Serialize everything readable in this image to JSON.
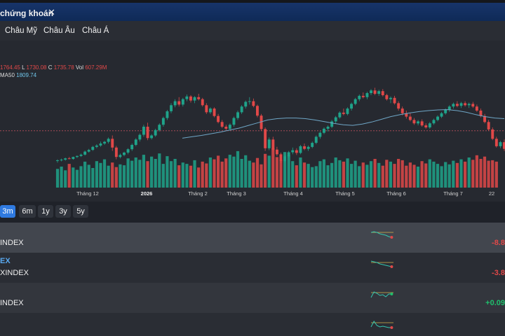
{
  "window": {
    "tab_title": "chứng khoán",
    "close_glyph": "✕"
  },
  "region_tabs": [
    "Châu Mỹ",
    "Châu Âu",
    "Châu Á"
  ],
  "legend": {
    "ohlc_head": "1764.45",
    "low_label": "L",
    "low": "1730.08",
    "close_label": "C",
    "close": "1735.78",
    "vol_label": "Vol",
    "vol": "607.29M",
    "ma_label": "MA50",
    "ma": "1809.74"
  },
  "chart_data": {
    "type": "candlestick",
    "x_tick_labels": [
      "Tháng 12",
      "2026",
      "Tháng 2",
      "Tháng 3",
      "Tháng 4",
      "Tháng 5",
      "Tháng 6",
      "Tháng 7",
      "22"
    ],
    "ylim": [
      1700,
      1950
    ],
    "reference_line": 1790,
    "candles": [
      [
        1700,
        1705,
        1695,
        1702
      ],
      [
        1702,
        1707,
        1699,
        1704
      ],
      [
        1704,
        1710,
        1701,
        1708
      ],
      [
        1708,
        1712,
        1705,
        1706
      ],
      [
        1706,
        1713,
        1704,
        1712
      ],
      [
        1712,
        1716,
        1709,
        1715
      ],
      [
        1715,
        1722,
        1712,
        1719
      ],
      [
        1719,
        1731,
        1716,
        1728
      ],
      [
        1728,
        1736,
        1725,
        1733
      ],
      [
        1733,
        1745,
        1730,
        1742
      ],
      [
        1742,
        1750,
        1738,
        1746
      ],
      [
        1746,
        1758,
        1742,
        1752
      ],
      [
        1752,
        1760,
        1748,
        1757
      ],
      [
        1757,
        1770,
        1752,
        1766
      ],
      [
        1766,
        1776,
        1730,
        1740
      ],
      [
        1740,
        1745,
        1705,
        1712
      ],
      [
        1712,
        1722,
        1708,
        1718
      ],
      [
        1718,
        1728,
        1714,
        1725
      ],
      [
        1725,
        1738,
        1720,
        1735
      ],
      [
        1735,
        1752,
        1730,
        1748
      ],
      [
        1748,
        1768,
        1744,
        1764
      ],
      [
        1764,
        1782,
        1758,
        1778
      ],
      [
        1778,
        1808,
        1772,
        1802
      ],
      [
        1802,
        1814,
        1762,
        1768
      ],
      [
        1768,
        1780,
        1764,
        1776
      ],
      [
        1776,
        1796,
        1772,
        1792
      ],
      [
        1792,
        1812,
        1788,
        1808
      ],
      [
        1808,
        1832,
        1802,
        1828
      ],
      [
        1828,
        1852,
        1822,
        1848
      ],
      [
        1848,
        1872,
        1842,
        1866
      ],
      [
        1866,
        1884,
        1860,
        1878
      ],
      [
        1878,
        1890,
        1862,
        1868
      ],
      [
        1868,
        1888,
        1862,
        1884
      ],
      [
        1884,
        1898,
        1878,
        1892
      ],
      [
        1892,
        1896,
        1874,
        1880
      ],
      [
        1880,
        1893,
        1872,
        1890
      ],
      [
        1890,
        1900,
        1880,
        1884
      ],
      [
        1884,
        1888,
        1862,
        1866
      ],
      [
        1866,
        1872,
        1840,
        1845
      ],
      [
        1845,
        1860,
        1840,
        1856
      ],
      [
        1856,
        1860,
        1830,
        1834
      ],
      [
        1834,
        1840,
        1812,
        1816
      ],
      [
        1816,
        1822,
        1798,
        1802
      ],
      [
        1802,
        1808,
        1790,
        1796
      ],
      [
        1796,
        1812,
        1790,
        1808
      ],
      [
        1808,
        1832,
        1802,
        1828
      ],
      [
        1828,
        1850,
        1822,
        1845
      ],
      [
        1845,
        1866,
        1840,
        1862
      ],
      [
        1862,
        1880,
        1856,
        1876
      ],
      [
        1876,
        1890,
        1868,
        1878
      ],
      [
        1878,
        1886,
        1860,
        1864
      ],
      [
        1864,
        1868,
        1830,
        1835
      ],
      [
        1835,
        1840,
        1790,
        1795
      ],
      [
        1795,
        1800,
        1730,
        1738
      ],
      [
        1738,
        1770,
        1732,
        1764
      ],
      [
        1764,
        1772,
        1728,
        1734
      ],
      [
        1734,
        1742,
        1715,
        1720
      ],
      [
        1720,
        1725,
        1694,
        1700
      ],
      [
        1700,
        1718,
        1696,
        1714
      ],
      [
        1714,
        1730,
        1710,
        1726
      ],
      [
        1726,
        1740,
        1720,
        1732
      ],
      [
        1732,
        1738,
        1718,
        1724
      ],
      [
        1724,
        1748,
        1720,
        1744
      ],
      [
        1744,
        1752,
        1732,
        1736
      ],
      [
        1736,
        1746,
        1730,
        1742
      ],
      [
        1742,
        1758,
        1738,
        1754
      ],
      [
        1754,
        1776,
        1750,
        1772
      ],
      [
        1772,
        1788,
        1766,
        1784
      ],
      [
        1784,
        1800,
        1780,
        1796
      ],
      [
        1796,
        1806,
        1788,
        1802
      ],
      [
        1802,
        1822,
        1798,
        1818
      ],
      [
        1818,
        1834,
        1812,
        1830
      ],
      [
        1830,
        1848,
        1826,
        1844
      ],
      [
        1844,
        1856,
        1836,
        1840
      ],
      [
        1840,
        1860,
        1836,
        1856
      ],
      [
        1856,
        1874,
        1850,
        1870
      ],
      [
        1870,
        1888,
        1866,
        1884
      ],
      [
        1884,
        1898,
        1878,
        1894
      ],
      [
        1894,
        1904,
        1886,
        1890
      ],
      [
        1890,
        1906,
        1884,
        1902
      ],
      [
        1902,
        1914,
        1896,
        1910
      ],
      [
        1910,
        1918,
        1896,
        1900
      ],
      [
        1900,
        1912,
        1894,
        1908
      ],
      [
        1908,
        1914,
        1892,
        1896
      ],
      [
        1896,
        1900,
        1880,
        1884
      ],
      [
        1884,
        1892,
        1872,
        1888
      ],
      [
        1888,
        1894,
        1868,
        1872
      ],
      [
        1872,
        1878,
        1850,
        1856
      ],
      [
        1856,
        1862,
        1836,
        1842
      ],
      [
        1842,
        1850,
        1826,
        1832
      ],
      [
        1832,
        1842,
        1818,
        1822
      ],
      [
        1822,
        1828,
        1808,
        1812
      ],
      [
        1812,
        1822,
        1806,
        1818
      ],
      [
        1818,
        1824,
        1802,
        1806
      ],
      [
        1806,
        1812,
        1796,
        1800
      ],
      [
        1800,
        1816,
        1796,
        1812
      ],
      [
        1812,
        1826,
        1808,
        1822
      ],
      [
        1822,
        1836,
        1818,
        1832
      ],
      [
        1832,
        1846,
        1828,
        1842
      ],
      [
        1842,
        1856,
        1838,
        1852
      ],
      [
        1852,
        1866,
        1846,
        1862
      ],
      [
        1862,
        1874,
        1856,
        1870
      ],
      [
        1870,
        1878,
        1860,
        1864
      ],
      [
        1864,
        1876,
        1858,
        1872
      ],
      [
        1872,
        1878,
        1862,
        1866
      ],
      [
        1866,
        1874,
        1858,
        1870
      ],
      [
        1870,
        1876,
        1858,
        1862
      ],
      [
        1862,
        1868,
        1846,
        1850
      ],
      [
        1850,
        1856,
        1830,
        1834
      ],
      [
        1834,
        1840,
        1812,
        1816
      ],
      [
        1816,
        1822,
        1790,
        1794
      ],
      [
        1794,
        1800,
        1762,
        1766
      ],
      [
        1766,
        1772,
        1740,
        1744
      ],
      [
        1744,
        1760,
        1738,
        1756
      ],
      [
        1756,
        1764,
        1730,
        1736
      ]
    ],
    "ma50": [
      1768,
      1772,
      1776,
      1781,
      1786,
      1792,
      1798,
      1806,
      1814,
      1822,
      1826,
      1828,
      1828,
      1826,
      1822,
      1817,
      1812,
      1808,
      1806,
      1810,
      1816,
      1824,
      1832,
      1838,
      1843,
      1847,
      1850,
      1852,
      1853,
      1850,
      1845,
      1838,
      1832,
      1828,
      1826
    ],
    "volume": [
      41,
      46,
      38,
      52,
      44,
      39,
      47,
      57,
      50,
      43,
      58,
      54,
      62,
      48,
      55,
      45,
      51,
      49,
      64,
      59,
      66,
      61,
      72,
      58,
      68,
      63,
      75,
      52,
      69,
      58,
      63,
      49,
      55,
      52,
      48,
      60,
      44,
      57,
      53,
      66,
      62,
      70,
      57,
      64,
      72,
      68,
      80,
      63,
      71,
      59,
      55,
      65,
      51,
      74,
      70,
      86,
      67,
      61,
      78,
      71,
      58,
      49,
      66,
      55,
      52,
      45,
      47,
      58,
      62,
      49,
      54,
      66,
      60,
      57,
      64,
      52,
      59,
      47,
      55,
      50,
      58,
      63,
      54,
      48,
      61,
      57,
      52,
      63,
      60,
      48,
      55,
      50,
      46,
      58,
      53,
      62,
      57,
      52,
      47,
      56,
      51,
      59,
      54,
      62,
      57,
      66,
      61,
      71,
      63,
      68,
      59,
      60,
      57
    ],
    "volume_colors": [
      "#e04848",
      "#1fa38a"
    ]
  },
  "range_buttons": [
    "3m",
    "6m",
    "1y",
    "3y",
    "5y"
  ],
  "active_range": "3m",
  "rows": [
    {
      "name": "",
      "code": "INDEX",
      "change": "-8.8",
      "spark": [
        6,
        5,
        6,
        8,
        9,
        10,
        12,
        13
      ],
      "color": "#e04848",
      "highlight": true
    },
    {
      "name": "EX",
      "code": "XINDEX",
      "change": "-3.8",
      "spark": [
        4,
        5,
        6,
        8,
        9,
        10,
        11,
        12
      ],
      "color": "#e04848",
      "highlight": false
    },
    {
      "name": "",
      "code": "INDEX",
      "change": "+0.09",
      "spark": [
        13,
        5,
        7,
        10,
        9,
        12,
        8,
        8
      ],
      "color": "#1fbf6c",
      "highlight": true
    },
    {
      "name": "",
      "code": "",
      "change": "",
      "spark": [
        12,
        4,
        10,
        12,
        11,
        12,
        13,
        13
      ],
      "color": "#e04848",
      "highlight": false
    }
  ]
}
